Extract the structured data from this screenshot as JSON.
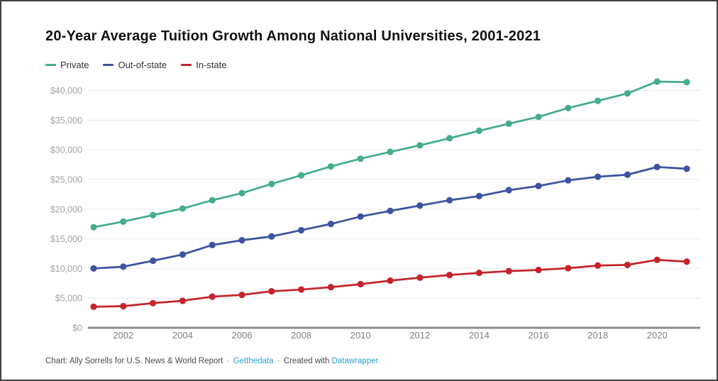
{
  "header": {
    "title": "20-Year Average Tuition Growth Among National Universities, 2001-2021"
  },
  "footer": {
    "credit": "Chart: Ally Sorrells for U.S. News & World Report",
    "separator": "·",
    "get_the_data_label": "Getthedata",
    "created_with": "Created with",
    "datawrapper_label": "Datawrapper"
  },
  "chart_data": {
    "type": "line",
    "title": "20-Year Average Tuition Growth Among National Universities, 2001-2021",
    "xlabel": "",
    "ylabel": "",
    "xlim": [
      2001,
      2021
    ],
    "ylim": [
      0,
      42500
    ],
    "grid": true,
    "legend_position": "top-left",
    "x": [
      2001,
      2002,
      2003,
      2004,
      2005,
      2006,
      2007,
      2008,
      2009,
      2010,
      2011,
      2012,
      2013,
      2014,
      2015,
      2016,
      2017,
      2018,
      2019,
      2020,
      2021
    ],
    "x_tick_labels": [
      "2002",
      "2004",
      "2006",
      "2008",
      "2010",
      "2012",
      "2014",
      "2016",
      "2018",
      "2020"
    ],
    "y_ticks": [
      {
        "value": 0,
        "label": "$0"
      },
      {
        "value": 5000,
        "label": "$5,000"
      },
      {
        "value": 10000,
        "label": "$10,000"
      },
      {
        "value": 15000,
        "label": "$15,000"
      },
      {
        "value": 20000,
        "label": "$20,000"
      },
      {
        "value": 25000,
        "label": "$25,000"
      },
      {
        "value": 30000,
        "label": "$30,000"
      },
      {
        "value": 35000,
        "label": "$35,000"
      },
      {
        "value": 40000,
        "label": "$40,000"
      }
    ],
    "series": [
      {
        "name": "Private",
        "color": "#44ad8b",
        "values": [
          16950,
          17900,
          19000,
          20100,
          21500,
          22700,
          24250,
          25700,
          27200,
          28500,
          29650,
          30750,
          31950,
          33200,
          34400,
          35550,
          37050,
          38250,
          39500,
          41500,
          41400
        ]
      },
      {
        "name": "Out-of-state",
        "color": "#3c53a0",
        "values": [
          10000,
          10300,
          11300,
          12350,
          13950,
          14750,
          15400,
          16450,
          17500,
          18750,
          19700,
          20600,
          21500,
          22200,
          23200,
          23900,
          24850,
          25450,
          25800,
          27100,
          26800
        ]
      },
      {
        "name": "In-state",
        "color": "#c5242b",
        "values": [
          3550,
          3650,
          4150,
          4550,
          5250,
          5550,
          6150,
          6450,
          6850,
          7350,
          7950,
          8450,
          8900,
          9250,
          9550,
          9750,
          10050,
          10500,
          10600,
          11450,
          11150
        ]
      }
    ]
  }
}
